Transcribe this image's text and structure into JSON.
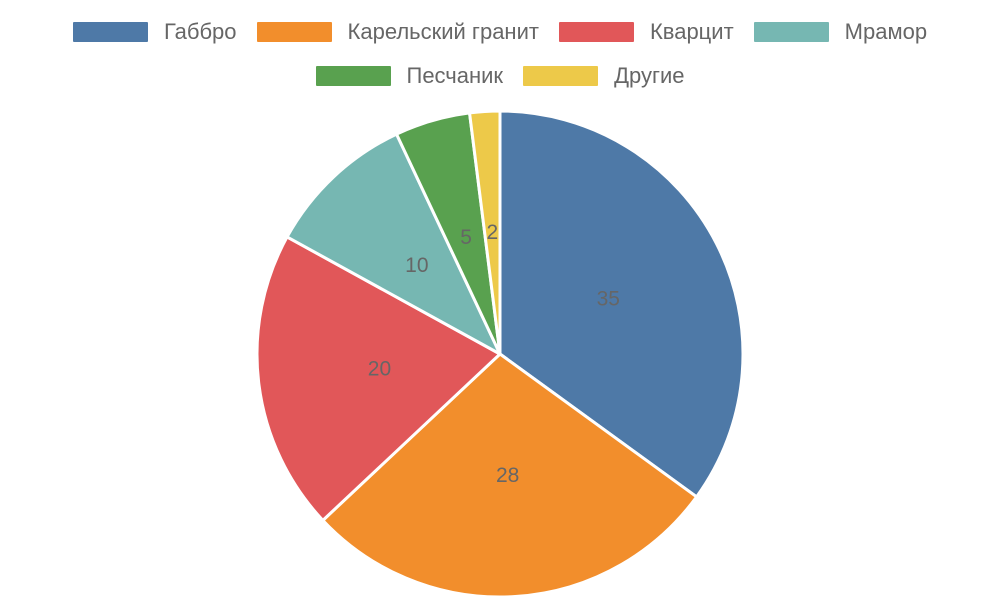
{
  "chart_data": {
    "type": "pie",
    "title": "",
    "categories": [
      "Габбро",
      "Карельский гранит",
      "Кварцит",
      "Мрамор",
      "Песчаник",
      "Другие"
    ],
    "values": [
      35,
      28,
      20,
      10,
      5,
      2
    ],
    "colors": [
      "#4e79a7",
      "#f28e2c",
      "#e15759",
      "#76b7b2",
      "#59a14f",
      "#edc949"
    ],
    "data_labels": [
      "35",
      "28",
      "20",
      "10",
      "5",
      "2"
    ],
    "legend_position": "top",
    "start_angle": "12 o'clock",
    "direction": "clockwise"
  }
}
